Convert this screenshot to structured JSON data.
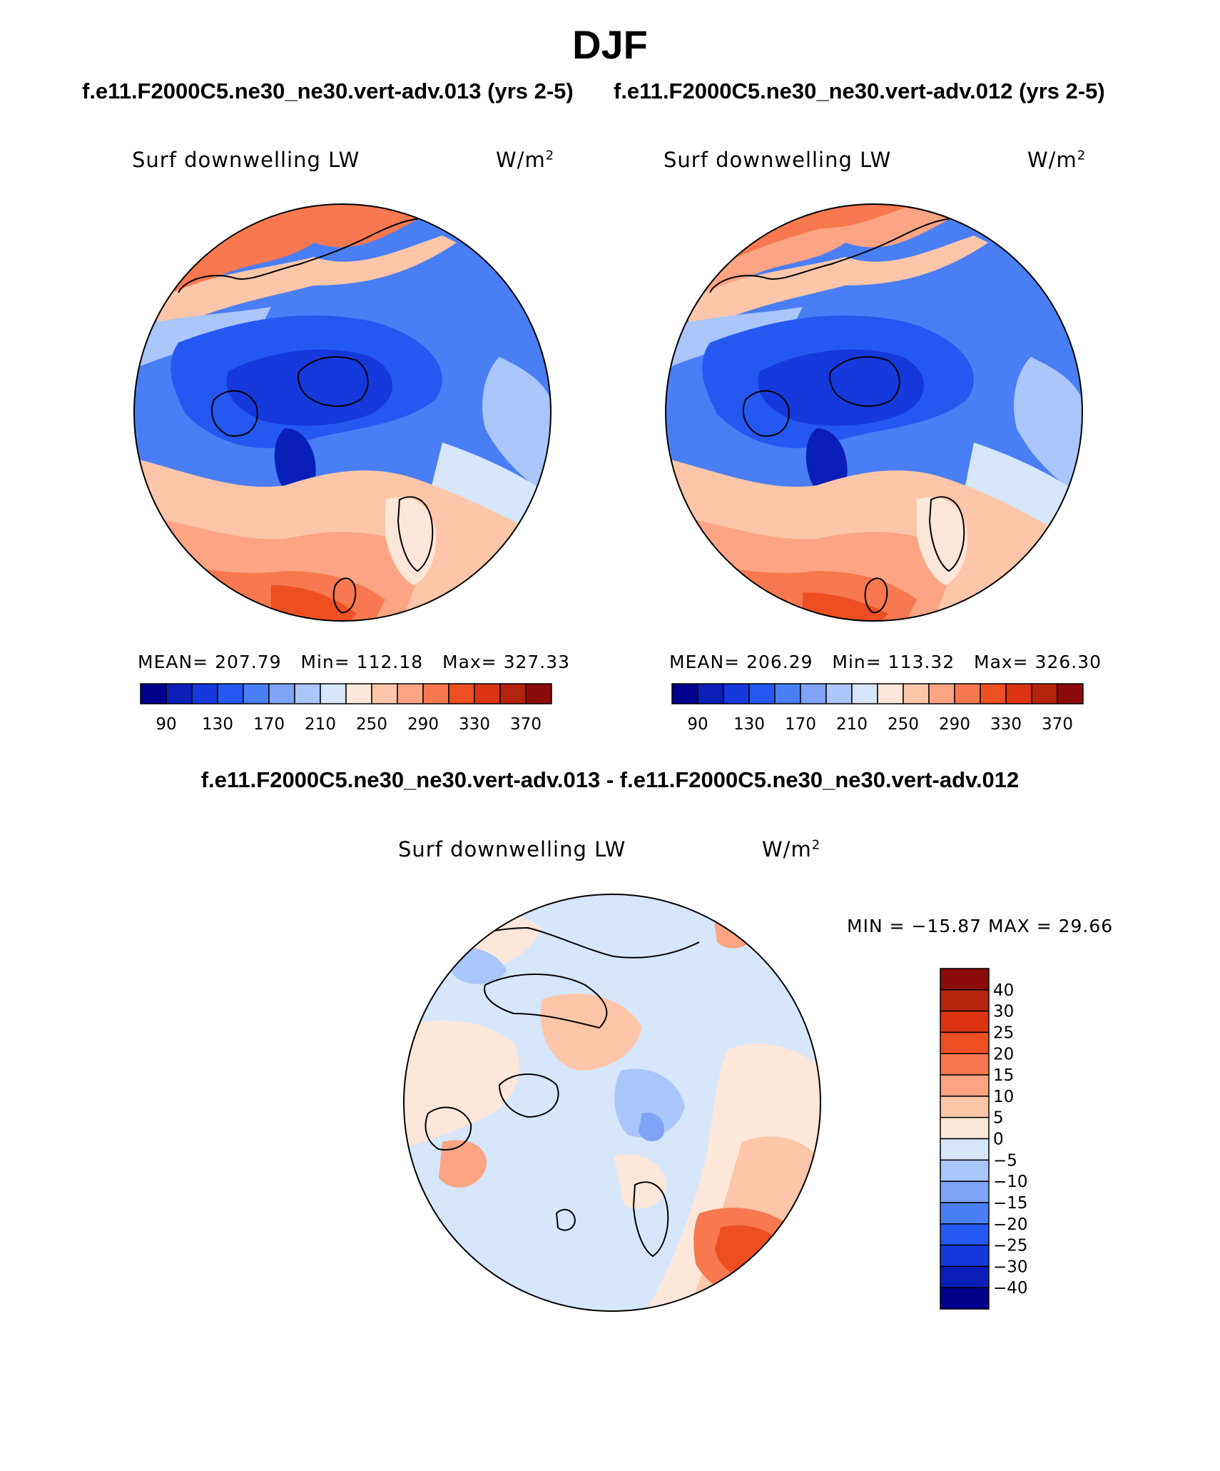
{
  "figure": {
    "season": "DJF",
    "case_a_label": "f.e11.F2000C5.ne30_ne30.vert-adv.013 (yrs 2-5)",
    "case_b_label": "f.e11.F2000C5.ne30_ne30.vert-adv.012 (yrs 2-5)",
    "diff_label": "f.e11.F2000C5.ne30_ne30.vert-adv.013 - f.e11.F2000C5.ne30_ne30.vert-adv.012"
  },
  "chart_data": [
    {
      "type": "heatmap",
      "projection": "north polar stereographic",
      "title": "Surf downwelling LW",
      "units_base": "W/m",
      "units_exp": "2",
      "stats": {
        "mean_label": "MEAN=",
        "mean": "207.79",
        "min_label": "Min=",
        "min": "112.18",
        "max_label": "Max=",
        "max": "327.33"
      },
      "colorbar": {
        "orientation": "horizontal",
        "levels": [
          90,
          110,
          130,
          150,
          170,
          190,
          210,
          230,
          250,
          270,
          290,
          310,
          330,
          350,
          370
        ],
        "tick_labels": [
          "90",
          "130",
          "170",
          "210",
          "250",
          "290",
          "330",
          "370"
        ],
        "colors": [
          "#00008c",
          "#0a1fb8",
          "#1539dc",
          "#2458f0",
          "#4a7ef5",
          "#7ea3f7",
          "#aac6fa",
          "#d6e6fb",
          "#fde7d8",
          "#fdc6a8",
          "#fca483",
          "#f8784f",
          "#ee4f22",
          "#dc3412",
          "#b4240d",
          "#8c0b0b"
        ]
      }
    },
    {
      "type": "heatmap",
      "projection": "north polar stereographic",
      "title": "Surf downwelling LW",
      "units_base": "W/m",
      "units_exp": "2",
      "stats": {
        "mean_label": "MEAN=",
        "mean": "206.29",
        "min_label": "Min=",
        "min": "113.32",
        "max_label": "Max=",
        "max": "326.30"
      },
      "colorbar": {
        "orientation": "horizontal",
        "levels": [
          90,
          110,
          130,
          150,
          170,
          190,
          210,
          230,
          250,
          270,
          290,
          310,
          330,
          350,
          370
        ],
        "tick_labels": [
          "90",
          "130",
          "170",
          "210",
          "250",
          "290",
          "330",
          "370"
        ],
        "colors": [
          "#00008c",
          "#0a1fb8",
          "#1539dc",
          "#2458f0",
          "#4a7ef5",
          "#7ea3f7",
          "#aac6fa",
          "#d6e6fb",
          "#fde7d8",
          "#fdc6a8",
          "#fca483",
          "#f8784f",
          "#ee4f22",
          "#dc3412",
          "#b4240d",
          "#8c0b0b"
        ]
      }
    },
    {
      "type": "heatmap",
      "projection": "north polar stereographic",
      "title": "Surf downwelling LW",
      "units_base": "W/m",
      "units_exp": "2",
      "stats_text": "MIN = −15.87 MAX =   29.66",
      "colorbar": {
        "orientation": "vertical",
        "levels": [
          40,
          30,
          25,
          20,
          15,
          10,
          5,
          0,
          -5,
          -10,
          -15,
          -20,
          -25,
          -30,
          -40
        ],
        "tick_labels": [
          "40",
          "30",
          "25",
          "20",
          "15",
          "10",
          "5",
          "0",
          "−5",
          "−10",
          "−15",
          "−20",
          "−25",
          "−30",
          "−40"
        ],
        "colors_top_to_bottom": [
          "#8c0b0b",
          "#b4240d",
          "#dc3412",
          "#ee4f22",
          "#f8784f",
          "#fca483",
          "#fdc6a8",
          "#fde7d8",
          "#d6e6fb",
          "#aac6fa",
          "#7ea3f7",
          "#4a7ef5",
          "#2458f0",
          "#1539dc",
          "#0a1fb8",
          "#00008c"
        ]
      }
    }
  ]
}
